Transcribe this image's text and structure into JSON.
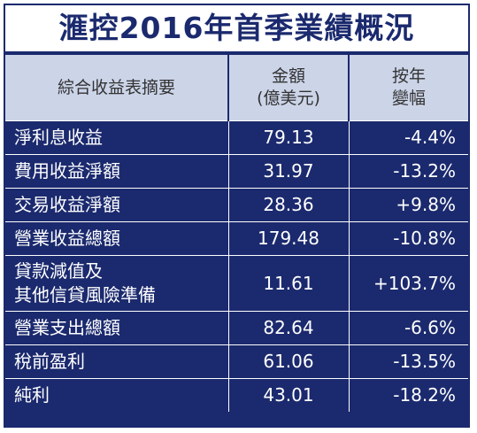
{
  "title": "滙控2016年首季業績概況",
  "table": {
    "header": [
      [
        "綜合收益表摘要"
      ],
      [
        "金額",
        "(億美元)"
      ],
      [
        "按年",
        "變幅"
      ]
    ],
    "rows": [
      [
        [
          "淨利息收益"
        ],
        "79.13",
        "-4.4%"
      ],
      [
        [
          "費用收益淨額"
        ],
        "31.97",
        "-13.2%"
      ],
      [
        [
          "交易收益淨額"
        ],
        "28.36",
        "+9.8%"
      ],
      [
        [
          "營業收益總額"
        ],
        "179.48",
        "-10.8%"
      ],
      [
        [
          "貸款減值及",
          "其他信貸風險準備"
        ],
        "11.61",
        "+103.7%"
      ],
      [
        [
          "營業支出總額"
        ],
        "82.64",
        "-6.6%"
      ],
      [
        [
          "稅前盈利"
        ],
        "61.06",
        "-13.5%"
      ],
      [
        [
          "純利"
        ],
        "43.01",
        "-18.2%"
      ]
    ]
  }
}
